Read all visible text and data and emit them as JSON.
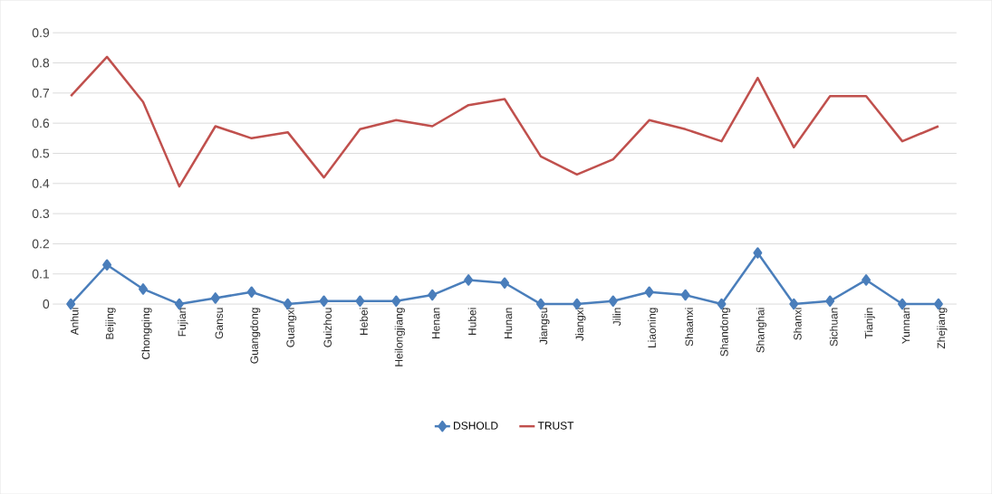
{
  "chart_data": {
    "type": "line",
    "categories": [
      "Anhui",
      "Beijing",
      "Chongqing",
      "Fujian",
      "Gansu",
      "Guangdong",
      "Guangxi",
      "Guizhou",
      "Hebei",
      "Heilongjiang",
      "Henan",
      "Hubei",
      "Hunan",
      "Jiangsu",
      "Jiangxi",
      "Jilin",
      "Liaoning",
      "Shaanxi",
      "Shandong",
      "Shanghai",
      "Shanxi",
      "Sichuan",
      "Tianjin",
      "Yunnan",
      "Zhejiang"
    ],
    "series": [
      {
        "name": "DSHOLD",
        "color": "#4a7ebb",
        "marker": "diamond",
        "values": [
          0,
          0.13,
          0.05,
          0,
          0.02,
          0.04,
          0,
          0.01,
          0.01,
          0.01,
          0.03,
          0.08,
          0.07,
          0,
          0,
          0.01,
          0.04,
          0.03,
          0,
          0.17,
          0,
          0.01,
          0.08,
          0,
          0
        ]
      },
      {
        "name": "TRUST",
        "color": "#c0504d",
        "marker": "none",
        "values": [
          0.69,
          0.82,
          0.67,
          0.39,
          0.59,
          0.55,
          0.57,
          0.42,
          0.58,
          0.61,
          0.59,
          0.66,
          0.68,
          0.49,
          0.43,
          0.48,
          0.61,
          0.58,
          0.54,
          0.75,
          0.52,
          0.69,
          0.69,
          0.54,
          0.59
        ]
      }
    ],
    "ylim": [
      0,
      0.9
    ],
    "yticks": [
      0,
      0.1,
      0.2,
      0.3,
      0.4,
      0.5,
      0.6,
      0.7,
      0.8,
      0.9
    ],
    "grid": "y",
    "legend": "bottom"
  }
}
